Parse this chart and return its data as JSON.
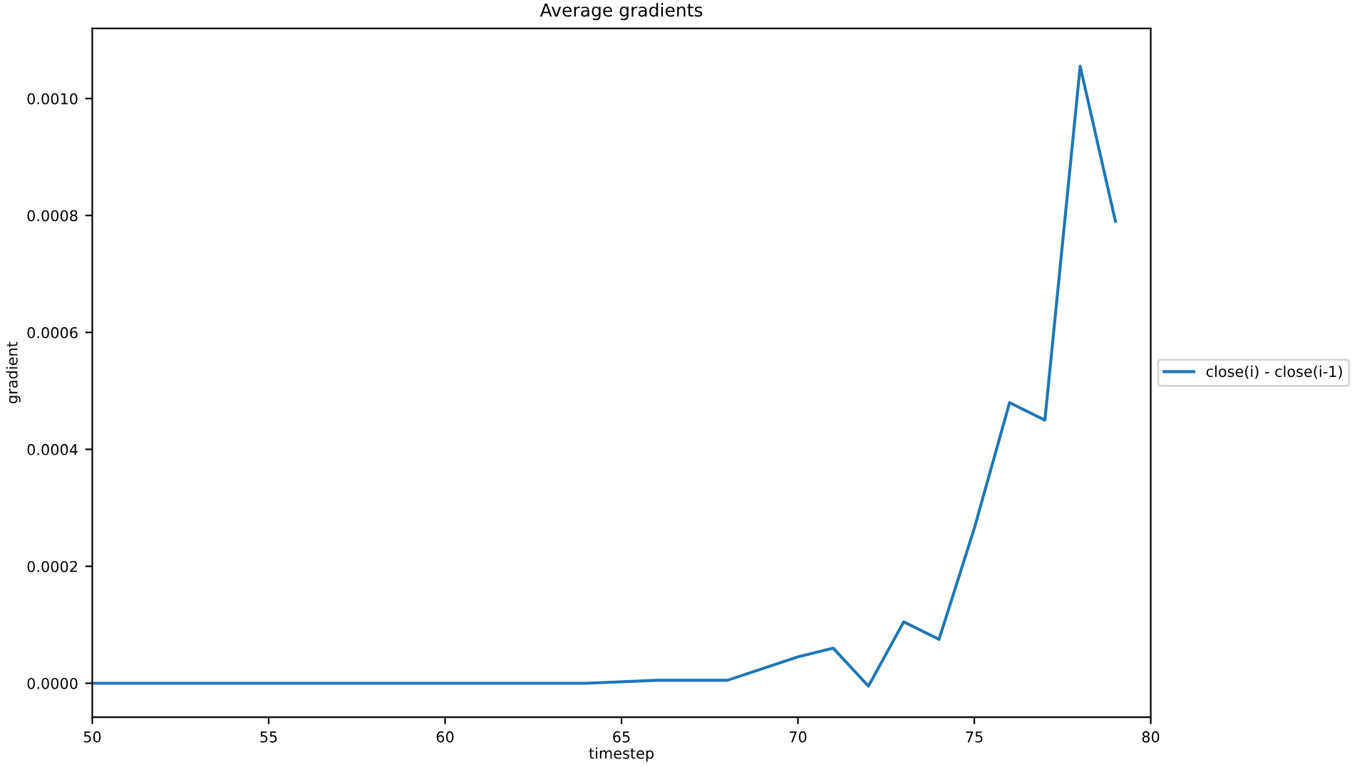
{
  "chart_data": {
    "type": "line",
    "title": "Average gradients",
    "xlabel": "timestep",
    "ylabel": "gradient",
    "xlim": [
      50,
      80
    ],
    "xticks": [
      50,
      55,
      60,
      65,
      70,
      75,
      80
    ],
    "ylim": [
      -5.8e-05,
      0.00112
    ],
    "yticks": [
      {
        "value": 0,
        "label": "0.0000"
      },
      {
        "value": 0.0002,
        "label": "0.0002"
      },
      {
        "value": 0.0004,
        "label": "0.0004"
      },
      {
        "value": 0.0006,
        "label": "0.0006"
      },
      {
        "value": 0.0008,
        "label": "0.0008"
      },
      {
        "value": 0.001,
        "label": "0.0010"
      }
    ],
    "grid": false,
    "legend": "right",
    "marker": "none",
    "line_style": "solid",
    "series": [
      {
        "name": "close(i) - close(i-1)",
        "color": "#1f77b4",
        "x": [
          50,
          62,
          64,
          66,
          68,
          70,
          71,
          72,
          73,
          74,
          75,
          76,
          77,
          78,
          79
        ],
        "values": [
          0,
          0,
          0,
          5e-06,
          5e-06,
          4.5e-05,
          6e-05,
          -5e-06,
          0.000105,
          7.5e-05,
          0.000265,
          0.00048,
          0.00045,
          0.001055,
          0.00079
        ]
      }
    ]
  }
}
